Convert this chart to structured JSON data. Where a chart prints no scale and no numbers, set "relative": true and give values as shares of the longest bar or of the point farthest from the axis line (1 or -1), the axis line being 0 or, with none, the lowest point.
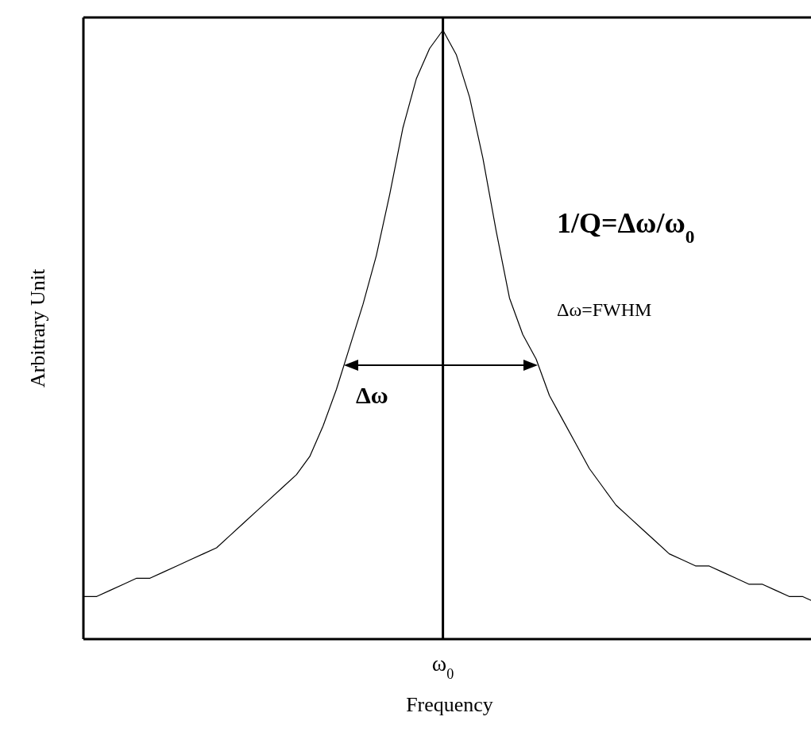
{
  "chart_data": {
    "type": "line",
    "relative": true,
    "xlabel": "Frequency",
    "ylabel": "Arbitrary Unit",
    "categories": [
      null,
      null,
      null,
      null,
      null,
      null,
      null,
      null,
      null,
      null,
      null,
      null,
      null,
      null,
      null,
      null,
      null,
      null,
      null,
      null,
      null,
      null,
      null,
      null,
      null,
      null,
      null,
      null,
      null,
      null,
      null,
      null,
      null,
      null,
      null,
      null,
      null,
      null,
      null,
      null,
      null,
      null,
      null,
      null,
      null,
      null,
      null,
      null,
      null,
      null,
      null,
      null,
      null,
      null,
      null,
      null
    ],
    "series": [
      {
        "color": "#000000",
        "values": [
          0.07,
          0.07,
          0.08,
          0.09,
          0.1,
          0.1,
          0.11,
          0.12,
          0.13,
          0.14,
          0.15,
          0.17,
          0.19,
          0.21,
          0.23,
          0.25,
          0.27,
          0.3,
          0.35,
          0.41,
          0.48,
          0.55,
          0.63,
          0.73,
          0.84,
          0.92,
          0.97,
          1,
          0.96,
          0.89,
          0.79,
          0.67,
          0.56,
          0.5,
          0.46,
          0.4,
          0.36,
          0.32,
          0.28,
          0.25,
          0.22,
          0.2,
          0.18,
          0.16,
          0.14,
          0.13,
          0.12,
          0.12,
          0.11,
          0.1,
          0.09,
          0.09,
          0.08,
          0.07,
          0.07,
          0.06
        ]
      }
    ],
    "annotations": [
      "1/Q=Δω/ω$_{0}$",
      "Δω=FWHM",
      "Δω",
      "ω$_{0}$"
    ]
  }
}
